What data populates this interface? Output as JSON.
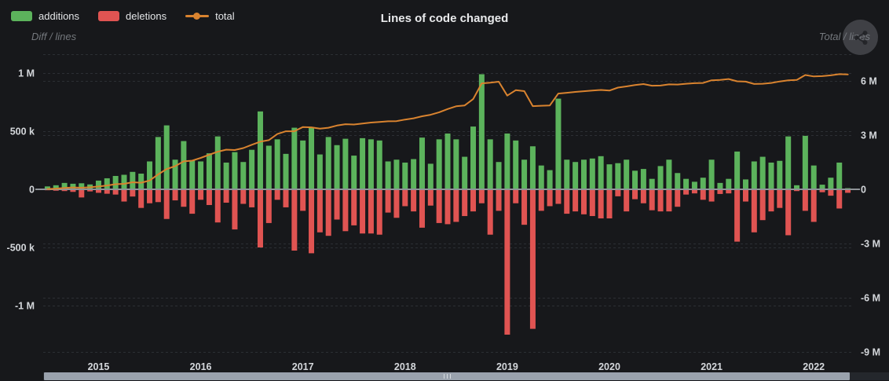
{
  "header": {
    "title": "Lines of code changed",
    "legend": {
      "items": [
        {
          "label": "additions",
          "color": "#5cb35c",
          "type": "bar"
        },
        {
          "label": "deletions",
          "color": "#e05452",
          "type": "bar"
        },
        {
          "label": "total",
          "color": "#d9832f",
          "type": "line"
        }
      ]
    }
  },
  "axes": {
    "left_name": "Diff / lines",
    "right_name": "Total / lines",
    "left_ticks": [
      {
        "label": "1 M",
        "value": 1000
      },
      {
        "label": "500 k",
        "value": 500
      },
      {
        "label": "0",
        "value": 0
      },
      {
        "label": "-500 k",
        "value": -500
      },
      {
        "label": "-1 M",
        "value": -1000
      }
    ],
    "right_ticks": [
      {
        "label": "6 M",
        "value": 6000
      },
      {
        "label": "3 M",
        "value": 3000
      },
      {
        "label": "0",
        "value": 0
      },
      {
        "label": "-3 M",
        "value": -3000
      },
      {
        "label": "-6 M",
        "value": -6000
      },
      {
        "label": "-9 M",
        "value": -9000
      }
    ],
    "x_year_labels": [
      {
        "label": "2015",
        "month_index": 6
      },
      {
        "label": "2016",
        "month_index": 18
      },
      {
        "label": "2017",
        "month_index": 30
      },
      {
        "label": "2018",
        "month_index": 42
      },
      {
        "label": "2019",
        "month_index": 54
      },
      {
        "label": "2020",
        "month_index": 66
      },
      {
        "label": "2021",
        "month_index": 78
      },
      {
        "label": "2022",
        "month_index": 90
      }
    ]
  },
  "toolbar": {
    "share_icon": "share-icon"
  },
  "colors": {
    "background": "#17181b",
    "additions": "#5cb35c",
    "deletions": "#e05452",
    "total_line": "#d9832f",
    "grid_line": "#2c2f34",
    "zero_axis_line": "#8f9398",
    "tick_text": "#d4d7db",
    "scrollbar_thumb": "#9aa2ad",
    "scrollbar_track": "#24272c"
  },
  "chart_data": {
    "type": "bar",
    "title": "Lines of code changed",
    "note": "monthly additions/deletions (left axis, bars) and cumulative total lines (right axis, orange line); values in thousands of lines",
    "value_unit": "thousand_lines",
    "left_axis_range_k": [
      -1450,
      1160
    ],
    "right_axis_range_k": [
      -9400,
      7450
    ],
    "grid": true,
    "legend_position": "top-left",
    "months": [
      "2014-07",
      "2014-08",
      "2014-09",
      "2014-10",
      "2014-11",
      "2014-12",
      "2015-01",
      "2015-02",
      "2015-03",
      "2015-04",
      "2015-05",
      "2015-06",
      "2015-07",
      "2015-08",
      "2015-09",
      "2015-10",
      "2015-11",
      "2015-12",
      "2016-01",
      "2016-02",
      "2016-03",
      "2016-04",
      "2016-05",
      "2016-06",
      "2016-07",
      "2016-08",
      "2016-09",
      "2016-10",
      "2016-11",
      "2016-12",
      "2017-01",
      "2017-02",
      "2017-03",
      "2017-04",
      "2017-05",
      "2017-06",
      "2017-07",
      "2017-08",
      "2017-09",
      "2017-10",
      "2017-11",
      "2017-12",
      "2018-01",
      "2018-02",
      "2018-03",
      "2018-04",
      "2018-05",
      "2018-06",
      "2018-07",
      "2018-08",
      "2018-09",
      "2018-10",
      "2018-11",
      "2018-12",
      "2019-01",
      "2019-02",
      "2019-03",
      "2019-04",
      "2019-05",
      "2019-06",
      "2019-07",
      "2019-08",
      "2019-09",
      "2019-10",
      "2019-11",
      "2019-12",
      "2020-01",
      "2020-02",
      "2020-03",
      "2020-04",
      "2020-05",
      "2020-06",
      "2020-07",
      "2020-08",
      "2020-09",
      "2020-10",
      "2020-11",
      "2020-12",
      "2021-01",
      "2021-02",
      "2021-03",
      "2021-04",
      "2021-05",
      "2021-06",
      "2021-07",
      "2021-08",
      "2021-09",
      "2021-10",
      "2021-11",
      "2021-12",
      "2022-01",
      "2022-02",
      "2022-03",
      "2022-04",
      "2022-05"
    ],
    "series": [
      {
        "name": "additions",
        "axis": "left",
        "values_k": [
          25,
          35,
          55,
          48,
          52,
          42,
          75,
          95,
          115,
          125,
          150,
          135,
          240,
          450,
          550,
          255,
          415,
          250,
          240,
          310,
          455,
          230,
          320,
          235,
          340,
          670,
          375,
          430,
          305,
          530,
          420,
          530,
          300,
          450,
          380,
          435,
          290,
          440,
          430,
          420,
          240,
          255,
          230,
          260,
          445,
          220,
          430,
          480,
          430,
          280,
          540,
          990,
          430,
          235,
          480,
          420,
          255,
          370,
          205,
          165,
          780,
          255,
          235,
          255,
          265,
          285,
          215,
          225,
          255,
          160,
          175,
          90,
          200,
          255,
          140,
          90,
          65,
          100,
          255,
          55,
          90,
          325,
          85,
          240,
          280,
          230,
          245,
          455,
          35,
          460,
          205,
          40,
          100,
          230,
          10
        ]
      },
      {
        "name": "deletions",
        "axis": "left",
        "direction": "down",
        "values_k": [
          8,
          12,
          15,
          22,
          70,
          18,
          30,
          38,
          45,
          105,
          62,
          160,
          120,
          110,
          255,
          95,
          150,
          210,
          90,
          135,
          285,
          115,
          345,
          125,
          155,
          500,
          290,
          90,
          155,
          527,
          185,
          550,
          370,
          400,
          260,
          360,
          310,
          380,
          380,
          390,
          200,
          245,
          145,
          190,
          330,
          140,
          290,
          300,
          280,
          230,
          190,
          120,
          390,
          185,
          1250,
          120,
          305,
          1200,
          185,
          145,
          125,
          210,
          190,
          215,
          230,
          250,
          250,
          60,
          190,
          85,
          120,
          180,
          190,
          190,
          150,
          45,
          35,
          90,
          105,
          40,
          35,
          450,
          105,
          370,
          265,
          190,
          160,
          395,
          15,
          185,
          280,
          25,
          55,
          165,
          30
        ]
      },
      {
        "name": "total",
        "axis": "right",
        "derivation": "cumulative(additions - deletions)"
      }
    ]
  },
  "scrollbar": {
    "window_start_pct": 0,
    "window_end_pct": 95
  }
}
